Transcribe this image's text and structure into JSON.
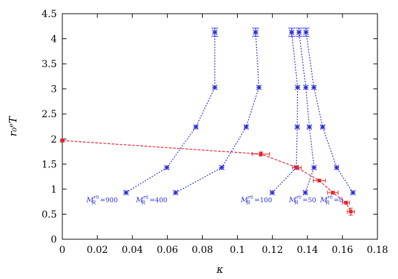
{
  "chart_data": {
    "type": "scatter",
    "xlabel": "κ",
    "ylabel": "r₀ᵉT",
    "xlim": [
      0,
      0.18
    ],
    "ylim": [
      0,
      4.5
    ],
    "x_ticks": [
      "0",
      "0.02",
      "0.04",
      "0.06",
      "0.08",
      "0.1",
      "0.12",
      "0.14",
      "0.16",
      "0.18"
    ],
    "y_ticks": [
      "0",
      "0.5",
      "1",
      "1.5",
      "2",
      "2.5",
      "3",
      "3.5",
      "4",
      "4.5"
    ],
    "grid": false,
    "colors": {
      "blue": "#2a2ad8",
      "red": "#e8202a"
    },
    "series": [
      {
        "label": "M_R^{r0}=900",
        "label_parts": {
          "base": "M",
          "sup": "r",
          "sup0": "0",
          "sub": "R",
          "rest": "=900"
        },
        "color": "blue",
        "points": [
          [
            0.0364,
            0.93
          ],
          [
            0.0597,
            1.43
          ],
          [
            0.0763,
            2.24
          ],
          [
            0.0871,
            3.03
          ],
          [
            0.0871,
            4.13
          ]
        ]
      },
      {
        "label": "M_R^{r0}=400",
        "label_parts": {
          "base": "M",
          "sup": "r",
          "sup0": "0",
          "sub": "R",
          "rest": "=400"
        },
        "color": "blue",
        "points": [
          [
            0.0647,
            0.93
          ],
          [
            0.0911,
            1.43
          ],
          [
            0.105,
            2.24
          ],
          [
            0.1123,
            3.03
          ],
          [
            0.1104,
            4.13
          ]
        ]
      },
      {
        "label": "M_R^{r0}=100",
        "label_parts": {
          "base": "M",
          "sup": "r",
          "sup0": "0",
          "sub": "R",
          "rest": "=100"
        },
        "color": "blue",
        "points": [
          [
            0.1199,
            0.93
          ],
          [
            0.1336,
            1.43
          ],
          [
            0.1342,
            2.24
          ],
          [
            0.1344,
            3.03
          ],
          [
            0.131,
            4.13
          ]
        ]
      },
      {
        "label": "M_R^{r0}=50",
        "label_parts": {
          "base": "M",
          "sup": "r",
          "sup0": "0",
          "sub": "R",
          "rest": "=50"
        },
        "color": "blue",
        "points": [
          [
            0.1388,
            0.93
          ],
          [
            0.1438,
            1.43
          ],
          [
            0.1411,
            2.24
          ],
          [
            0.1391,
            3.03
          ],
          [
            0.1352,
            4.13
          ]
        ]
      },
      {
        "label": "M_R^{r0}=0",
        "label_parts": {
          "base": "M",
          "sup": "r",
          "sup0": "0",
          "sub": "R",
          "rest": "=0"
        },
        "color": "blue",
        "points": [
          [
            0.166,
            0.93
          ],
          [
            0.1567,
            1.43
          ],
          [
            0.1487,
            2.24
          ],
          [
            0.1437,
            3.03
          ],
          [
            0.1392,
            4.13
          ]
        ]
      },
      {
        "label": "",
        "color": "red",
        "points": [
          [
            0.0,
            1.97
          ],
          [
            0.1134,
            1.7
          ],
          [
            0.134,
            1.43
          ],
          [
            0.1468,
            1.17
          ],
          [
            0.1545,
            0.93
          ],
          [
            0.162,
            0.73
          ],
          [
            0.1648,
            0.55
          ]
        ],
        "xerr": [
          0.001,
          0.005,
          0.0025,
          0.0035,
          0.003,
          0.002,
          0.002
        ],
        "yerr": [
          0.03,
          0.04,
          0.03,
          0.03,
          0.03,
          0.03,
          0.07
        ]
      }
    ]
  }
}
